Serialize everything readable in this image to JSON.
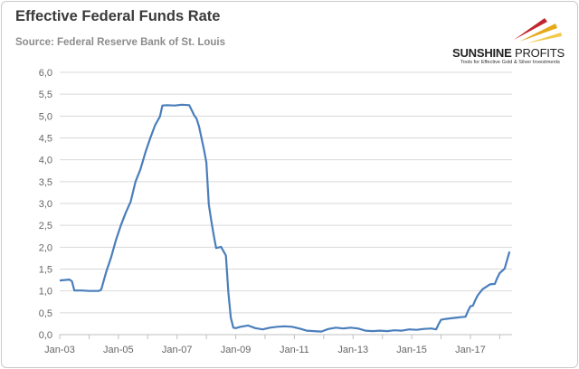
{
  "header": {
    "title": "Effective Federal Funds Rate",
    "subtitle": "Source: Federal Reserve Bank of St. Louis"
  },
  "logo": {
    "name_bold": "SUNSHINE",
    "name_thin": "PROFITS",
    "tagline": "Tools for Effective Gold & Silver Investments"
  },
  "colors": {
    "line": "#4a7ebb",
    "grid": "#d9d9d9",
    "axis": "#bfbfbf",
    "accent_red": "#c0272d",
    "accent_gold": "#e6a817"
  },
  "chart_data": {
    "type": "line",
    "title": "Effective Federal Funds Rate",
    "xlabel": "",
    "ylabel": "",
    "ylim": [
      0,
      6
    ],
    "yticks": [
      "0,0",
      "0,5",
      "1,0",
      "1,5",
      "2,0",
      "2,5",
      "3,0",
      "3,5",
      "4,0",
      "4,5",
      "5,0",
      "5,5",
      "6,0"
    ],
    "xticks": [
      "Jan-03",
      "Jan-05",
      "Jan-07",
      "Jan-09",
      "Jan-11",
      "Jan-13",
      "Jan-15",
      "Jan-17"
    ],
    "grid": "horizontal",
    "legend": "none",
    "x": [
      "2003-01",
      "2003-03",
      "2003-05",
      "2003-06",
      "2003-07",
      "2003-10",
      "2004-01",
      "2004-05",
      "2004-06",
      "2004-08",
      "2004-10",
      "2004-12",
      "2005-02",
      "2005-04",
      "2005-06",
      "2005-08",
      "2005-10",
      "2005-12",
      "2006-02",
      "2006-04",
      "2006-06",
      "2006-07",
      "2006-09",
      "2006-12",
      "2007-03",
      "2007-06",
      "2007-08",
      "2007-09",
      "2007-10",
      "2007-12",
      "2008-01",
      "2008-02",
      "2008-03",
      "2008-04",
      "2008-05",
      "2008-07",
      "2008-09",
      "2008-10",
      "2008-11",
      "2008-12",
      "2009-01",
      "2009-03",
      "2009-06",
      "2009-09",
      "2009-12",
      "2010-03",
      "2010-06",
      "2010-09",
      "2010-12",
      "2011-03",
      "2011-06",
      "2011-09",
      "2011-12",
      "2012-03",
      "2012-06",
      "2012-09",
      "2012-12",
      "2013-03",
      "2013-06",
      "2013-09",
      "2013-12",
      "2014-03",
      "2014-06",
      "2014-09",
      "2014-12",
      "2015-03",
      "2015-06",
      "2015-09",
      "2015-11",
      "2015-12",
      "2016-01",
      "2016-03",
      "2016-06",
      "2016-09",
      "2016-11",
      "2016-12",
      "2017-01",
      "2017-02",
      "2017-03",
      "2017-04",
      "2017-06",
      "2017-09",
      "2017-11",
      "2017-12",
      "2018-01",
      "2018-03",
      "2018-05"
    ],
    "series": [
      {
        "values": [
          1.24,
          1.25,
          1.26,
          1.22,
          1.01,
          1.01,
          1.0,
          1.0,
          1.03,
          1.43,
          1.76,
          2.16,
          2.5,
          2.79,
          3.04,
          3.5,
          3.78,
          4.16,
          4.49,
          4.79,
          4.99,
          5.24,
          5.25,
          5.24,
          5.26,
          5.25,
          5.02,
          4.94,
          4.76,
          4.24,
          3.94,
          2.98,
          2.61,
          2.28,
          1.98,
          2.01,
          1.81,
          0.97,
          0.39,
          0.16,
          0.15,
          0.18,
          0.21,
          0.15,
          0.12,
          0.16,
          0.18,
          0.19,
          0.18,
          0.14,
          0.09,
          0.08,
          0.07,
          0.13,
          0.16,
          0.14,
          0.16,
          0.14,
          0.09,
          0.08,
          0.09,
          0.08,
          0.1,
          0.09,
          0.12,
          0.11,
          0.13,
          0.14,
          0.12,
          0.24,
          0.34,
          0.36,
          0.38,
          0.4,
          0.41,
          0.54,
          0.65,
          0.66,
          0.79,
          0.9,
          1.04,
          1.15,
          1.16,
          1.3,
          1.41,
          1.51,
          1.9
        ]
      }
    ]
  }
}
